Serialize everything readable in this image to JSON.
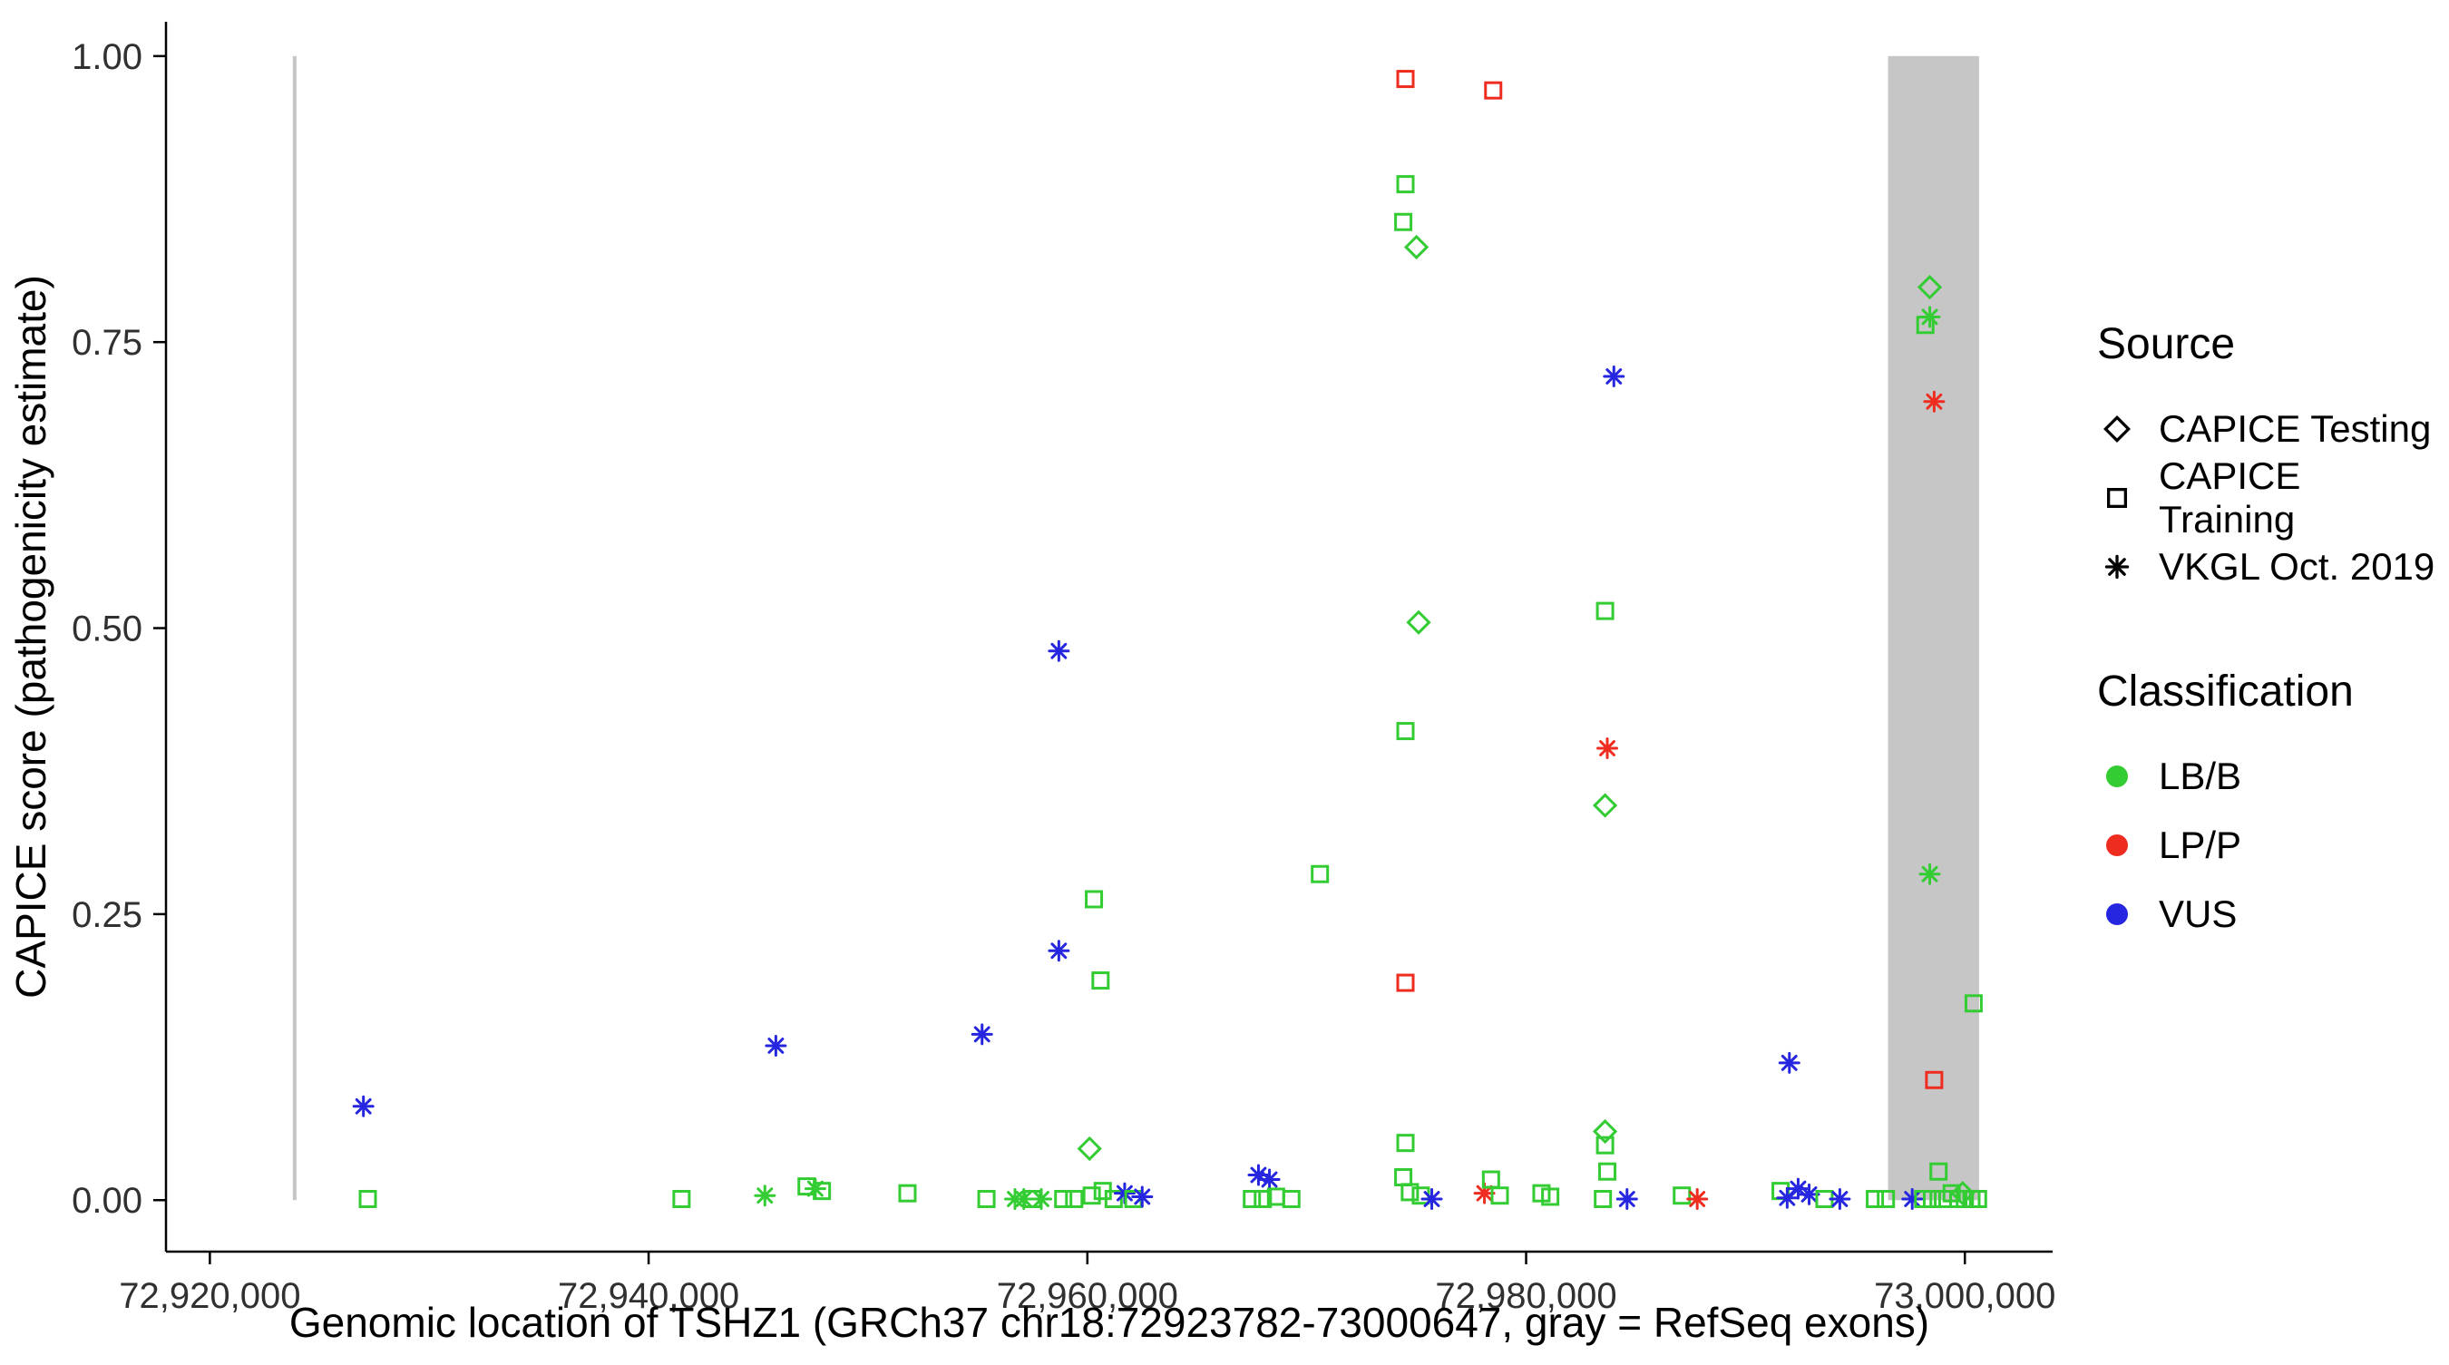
{
  "colors": {
    "LB/B": "#33CC33",
    "LP/P": "#EE2C20",
    "VUS": "#2626E0",
    "exon": "#C6C6C6",
    "axis": "#000000",
    "tick_label": "#303030",
    "background": "#FFFFFF"
  },
  "legend": {
    "source": {
      "title": "Source",
      "items": [
        {
          "shape": "diamond",
          "label": "CAPICE Testing"
        },
        {
          "shape": "square",
          "label": "CAPICE Training"
        },
        {
          "shape": "asterisk",
          "label": "VKGL Oct. 2019"
        }
      ]
    },
    "classification": {
      "title": "Classification",
      "items": [
        {
          "color": "#33CC33",
          "label": "LB/B"
        },
        {
          "color": "#EE2C20",
          "label": "LP/P"
        },
        {
          "color": "#2626E0",
          "label": "VUS"
        }
      ]
    }
  },
  "chart_data": {
    "type": "scatter",
    "title": "",
    "xlabel": "Genomic location of TSHZ1 (GRCh37 chr18:72923782-73000647, gray = RefSeq exons)",
    "ylabel": "CAPICE score (pathogenicity estimate)",
    "xlim": [
      72918000,
      73004000
    ],
    "ylim": [
      -0.045,
      1.03
    ],
    "grid": false,
    "legend_position": "right",
    "x_ticks": [
      {
        "value": 72920000,
        "label": "72,920,000"
      },
      {
        "value": 72940000,
        "label": "72,940,000"
      },
      {
        "value": 72960000,
        "label": "72,960,000"
      },
      {
        "value": 72980000,
        "label": "72,980,000"
      },
      {
        "value": 73000000,
        "label": "73,000,000"
      }
    ],
    "y_ticks": [
      {
        "value": 0.0,
        "label": "0.00"
      },
      {
        "value": 0.25,
        "label": "0.25"
      },
      {
        "value": 0.5,
        "label": "0.50"
      },
      {
        "value": 0.75,
        "label": "0.75"
      },
      {
        "value": 1.0,
        "label": "1.00"
      }
    ],
    "exon_regions": [
      {
        "start": 72923782,
        "end": 72923950
      },
      {
        "start": 72996500,
        "end": 73000647
      }
    ],
    "source_shapes": {
      "testing": "diamond",
      "training": "square",
      "vkgl": "asterisk"
    },
    "point_format": [
      "x",
      "y",
      "source",
      "classification"
    ],
    "points": [
      [
        72927000,
        0.082,
        "vkgl",
        "VUS"
      ],
      [
        72927200,
        0.001,
        "training",
        "LB/B"
      ],
      [
        72941500,
        0.001,
        "training",
        "LB/B"
      ],
      [
        72945800,
        0.135,
        "vkgl",
        "VUS"
      ],
      [
        72945300,
        0.004,
        "vkgl",
        "LB/B"
      ],
      [
        72947200,
        0.012,
        "training",
        "LB/B"
      ],
      [
        72947600,
        0.01,
        "vkgl",
        "LB/B"
      ],
      [
        72947900,
        0.008,
        "training",
        "LB/B"
      ],
      [
        72951800,
        0.006,
        "training",
        "LB/B"
      ],
      [
        72955200,
        0.145,
        "vkgl",
        "VUS"
      ],
      [
        72955400,
        0.001,
        "training",
        "LB/B"
      ],
      [
        72956700,
        0.001,
        "vkgl",
        "LB/B"
      ],
      [
        72957100,
        0.001,
        "vkgl",
        "LB/B"
      ],
      [
        72957500,
        0.001,
        "training",
        "LB/B"
      ],
      [
        72957900,
        0.001,
        "vkgl",
        "LB/B"
      ],
      [
        72958700,
        0.48,
        "vkgl",
        "VUS"
      ],
      [
        72958700,
        0.218,
        "vkgl",
        "VUS"
      ],
      [
        72958900,
        0.001,
        "training",
        "LB/B"
      ],
      [
        72959400,
        0.001,
        "training",
        "LB/B"
      ],
      [
        72960300,
        0.263,
        "training",
        "LB/B"
      ],
      [
        72960600,
        0.192,
        "training",
        "LB/B"
      ],
      [
        72960100,
        0.045,
        "testing",
        "LB/B"
      ],
      [
        72960200,
        0.004,
        "training",
        "LB/B"
      ],
      [
        72960700,
        0.008,
        "training",
        "LB/B"
      ],
      [
        72961200,
        0.001,
        "training",
        "LB/B"
      ],
      [
        72961700,
        0.006,
        "vkgl",
        "VUS"
      ],
      [
        72962100,
        0.001,
        "training",
        "LB/B"
      ],
      [
        72962500,
        0.003,
        "vkgl",
        "VUS"
      ],
      [
        72967800,
        0.022,
        "vkgl",
        "VUS"
      ],
      [
        72968300,
        0.018,
        "vkgl",
        "VUS"
      ],
      [
        72967500,
        0.001,
        "training",
        "LB/B"
      ],
      [
        72968000,
        0.001,
        "training",
        "LB/B"
      ],
      [
        72968600,
        0.003,
        "training",
        "LB/B"
      ],
      [
        72969300,
        0.001,
        "training",
        "LB/B"
      ],
      [
        72970600,
        0.285,
        "training",
        "LB/B"
      ],
      [
        72974500,
        0.98,
        "training",
        "LP/P"
      ],
      [
        72978500,
        0.97,
        "training",
        "LP/P"
      ],
      [
        72974500,
        0.888,
        "training",
        "LB/B"
      ],
      [
        72974400,
        0.855,
        "training",
        "LB/B"
      ],
      [
        72975000,
        0.833,
        "testing",
        "LB/B"
      ],
      [
        72975100,
        0.505,
        "testing",
        "LB/B"
      ],
      [
        72974500,
        0.41,
        "training",
        "LB/B"
      ],
      [
        72974500,
        0.19,
        "training",
        "LP/P"
      ],
      [
        72974500,
        0.05,
        "training",
        "LB/B"
      ],
      [
        72974400,
        0.02,
        "training",
        "LB/B"
      ],
      [
        72974700,
        0.007,
        "training",
        "LB/B"
      ],
      [
        72975200,
        0.004,
        "training",
        "LB/B"
      ],
      [
        72975700,
        0.001,
        "vkgl",
        "VUS"
      ],
      [
        72978100,
        0.006,
        "vkgl",
        "LP/P"
      ],
      [
        72978400,
        0.018,
        "training",
        "LB/B"
      ],
      [
        72978800,
        0.004,
        "training",
        "LB/B"
      ],
      [
        72980700,
        0.006,
        "training",
        "LB/B"
      ],
      [
        72981100,
        0.003,
        "training",
        "LB/B"
      ],
      [
        72984000,
        0.72,
        "vkgl",
        "VUS"
      ],
      [
        72983600,
        0.515,
        "training",
        "LB/B"
      ],
      [
        72983700,
        0.395,
        "vkgl",
        "LP/P"
      ],
      [
        72983600,
        0.345,
        "testing",
        "LB/B"
      ],
      [
        72983600,
        0.06,
        "testing",
        "LB/B"
      ],
      [
        72983600,
        0.048,
        "training",
        "LB/B"
      ],
      [
        72983700,
        0.025,
        "training",
        "LB/B"
      ],
      [
        72983500,
        0.001,
        "training",
        "LB/B"
      ],
      [
        72984600,
        0.001,
        "vkgl",
        "VUS"
      ],
      [
        72987100,
        0.004,
        "training",
        "LB/B"
      ],
      [
        72987800,
        0.001,
        "vkgl",
        "LP/P"
      ],
      [
        72992000,
        0.12,
        "vkgl",
        "VUS"
      ],
      [
        72991600,
        0.008,
        "training",
        "LB/B"
      ],
      [
        72991900,
        0.002,
        "vkgl",
        "VUS"
      ],
      [
        72992400,
        0.01,
        "vkgl",
        "VUS"
      ],
      [
        72992900,
        0.005,
        "vkgl",
        "VUS"
      ],
      [
        72993600,
        0.001,
        "training",
        "LB/B"
      ],
      [
        72994300,
        0.001,
        "vkgl",
        "VUS"
      ],
      [
        72995900,
        0.001,
        "training",
        "LB/B"
      ],
      [
        72996400,
        0.001,
        "training",
        "LB/B"
      ],
      [
        72998400,
        0.798,
        "testing",
        "LB/B"
      ],
      [
        72998400,
        0.772,
        "vkgl",
        "LB/B"
      ],
      [
        72998200,
        0.765,
        "training",
        "LB/B"
      ],
      [
        72998600,
        0.698,
        "vkgl",
        "LP/P"
      ],
      [
        72998400,
        0.285,
        "vkgl",
        "LB/B"
      ],
      [
        73000400,
        0.172,
        "training",
        "LB/B"
      ],
      [
        72998600,
        0.105,
        "training",
        "LP/P"
      ],
      [
        72998800,
        0.025,
        "training",
        "LB/B"
      ],
      [
        72997600,
        0.001,
        "vkgl",
        "VUS"
      ],
      [
        72998100,
        0.001,
        "training",
        "LB/B"
      ],
      [
        72998500,
        0.001,
        "training",
        "LB/B"
      ],
      [
        72999000,
        0.001,
        "training",
        "LB/B"
      ],
      [
        72999400,
        0.006,
        "training",
        "LB/B"
      ],
      [
        72999700,
        0.001,
        "training",
        "LB/B"
      ],
      [
        73000000,
        0.001,
        "training",
        "LB/B"
      ],
      [
        73000300,
        0.001,
        "training",
        "LB/B"
      ],
      [
        73000600,
        0.001,
        "training",
        "LB/B"
      ],
      [
        72999900,
        0.006,
        "testing",
        "LB/B"
      ]
    ]
  }
}
